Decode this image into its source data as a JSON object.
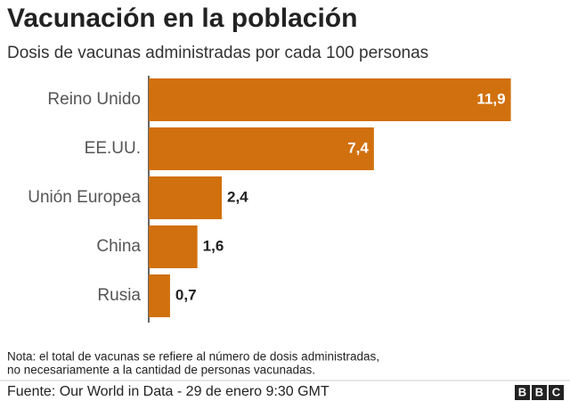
{
  "chart_data": {
    "type": "bar",
    "orientation": "horizontal",
    "title": "Vacunación en la población",
    "subtitle": "Dosis de vacunas administradas por cada 100 personas",
    "categories": [
      "Reino Unido",
      "EE.UU.",
      "Unión Europea",
      "China",
      "Rusia"
    ],
    "values": [
      11.9,
      7.4,
      2.4,
      1.6,
      0.7
    ],
    "value_labels": [
      "11,9",
      "7,4",
      "2,4",
      "1,6",
      "0,7"
    ],
    "color": "#d1700e",
    "xlim": [
      0,
      12
    ],
    "note": [
      "Nota: el total de vacunas se refiere al número de dosis administradas,",
      "no necesariamente a la cantidad de personas vacunadas."
    ],
    "source": "Fuente: Our World in Data - 29 de enero 9:30 GMT",
    "logo": "BBC"
  }
}
